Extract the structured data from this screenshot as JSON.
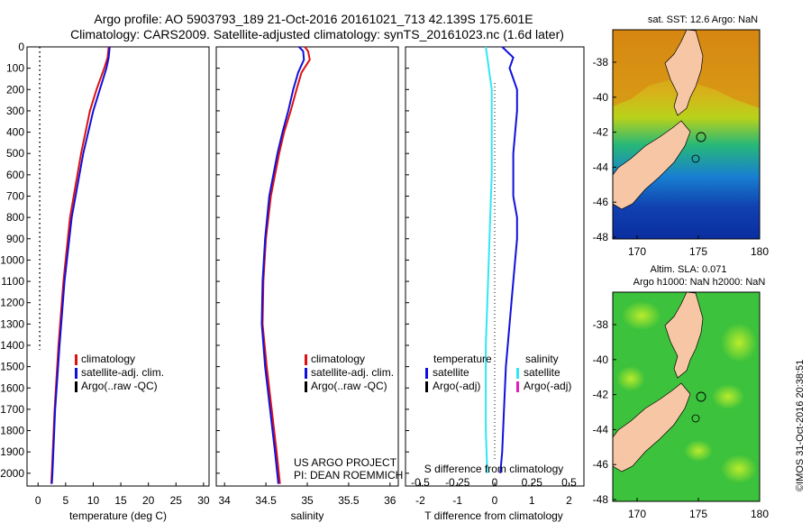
{
  "header": {
    "line1": "Argo profile: AO 5903793_189 21-Oct-2016 20161021_713 42.139S 175.601E",
    "line2": "Climatology: CARS2009. Satellite-adjusted climatology: synTS_20161023.nc (1.6d later)"
  },
  "colors": {
    "climatology": "#dd1111",
    "satellite": "#1010dd",
    "argo": "#000000",
    "satellite_s_diff": "#33e6f2",
    "argo_s_diff": "#e020c0",
    "land": "#f7c7a5"
  },
  "chart_data": [
    {
      "type": "line",
      "panel": "temperature",
      "xlabel": "temperature (deg C)",
      "xlim": [
        -2,
        31
      ],
      "xticks": [
        "0",
        "5",
        "10",
        "15",
        "20",
        "25",
        "30"
      ],
      "xtick_values": [
        0,
        5,
        10,
        15,
        20,
        25,
        30
      ],
      "ylim": [
        2060,
        0
      ],
      "yticks": [
        "0",
        "100",
        "200",
        "300",
        "400",
        "500",
        "600",
        "700",
        "800",
        "900",
        "1000",
        "1100",
        "1200",
        "1300",
        "1400",
        "1500",
        "1600",
        "1700",
        "1800",
        "1900",
        "2000"
      ],
      "ytick_values": [
        0,
        100,
        200,
        300,
        400,
        500,
        600,
        700,
        800,
        900,
        1000,
        1100,
        1200,
        1300,
        1400,
        1500,
        1600,
        1700,
        1800,
        1900,
        2000
      ],
      "legend": [
        "climatology",
        "satellite-adj. clim.",
        "Argo(..raw -QC)"
      ],
      "series": [
        {
          "name": "climatology",
          "depth": [
            0,
            50,
            100,
            200,
            300,
            500,
            800,
            1100,
            1400,
            1700,
            2000,
            2050
          ],
          "values": [
            12.8,
            12.6,
            12.0,
            10.6,
            9.4,
            7.8,
            5.8,
            4.6,
            3.7,
            3.0,
            2.5,
            2.4
          ]
        },
        {
          "name": "satellite-adj. clim.",
          "depth": [
            0,
            50,
            100,
            200,
            300,
            500,
            800,
            1100,
            1400,
            1700,
            2000,
            2050
          ],
          "values": [
            13.0,
            12.8,
            12.4,
            11.2,
            10.0,
            8.2,
            6.1,
            4.8,
            3.9,
            3.1,
            2.6,
            2.5
          ]
        },
        {
          "name": "Argo(..raw -QC)",
          "depth": [
            0,
            1420
          ],
          "values": [
            0.3,
            0.3
          ]
        }
      ]
    },
    {
      "type": "line",
      "panel": "salinity",
      "xlabel": "salinity",
      "xlim": [
        33.9,
        36.1
      ],
      "xticks": [
        "34",
        "34.5",
        "35",
        "35.5",
        "36"
      ],
      "xtick_values": [
        34,
        34.5,
        35,
        35.5,
        36
      ],
      "ylim": [
        2060,
        0
      ],
      "legend": [
        "climatology",
        "satellite-adj. clim.",
        "Argo(..raw -QC)"
      ],
      "annotation": [
        "US ARGO PROJECT",
        "PI: DEAN ROEMMICH"
      ],
      "series": [
        {
          "name": "climatology",
          "depth": [
            0,
            20,
            60,
            120,
            200,
            300,
            400,
            500,
            700,
            900,
            1100,
            1300,
            1500,
            1700,
            1900,
            2050
          ],
          "values": [
            34.97,
            35.01,
            35.03,
            34.93,
            34.87,
            34.8,
            34.72,
            34.66,
            34.56,
            34.5,
            34.47,
            34.46,
            34.51,
            34.57,
            34.63,
            34.67
          ]
        },
        {
          "name": "satellite-adj. clim.",
          "depth": [
            0,
            20,
            60,
            120,
            200,
            300,
            400,
            500,
            700,
            900,
            1100,
            1300,
            1500,
            1700,
            1900,
            2050
          ],
          "values": [
            34.9,
            34.95,
            34.96,
            34.89,
            34.83,
            34.77,
            34.7,
            34.64,
            34.54,
            34.49,
            34.46,
            34.45,
            34.49,
            34.55,
            34.61,
            34.65
          ]
        }
      ]
    },
    {
      "type": "line",
      "panel": "differences",
      "xlabel": "T difference from climatology",
      "xlabel2": "S difference from climatology",
      "xlim": [
        -2.4,
        2.4
      ],
      "xticks": [
        "-2",
        "-1",
        "0",
        "1",
        "2"
      ],
      "xtick_values": [
        -2,
        -1,
        0,
        1,
        2
      ],
      "xticks2": [
        "-0.5",
        "-0.25",
        "0",
        "0.25",
        "0.5"
      ],
      "xtick2_values": [
        -0.5,
        -0.25,
        0,
        0.25,
        0.5
      ],
      "ylim": [
        2060,
        0
      ],
      "legend_headers": [
        "temperature",
        "salinity"
      ],
      "legend_left": [
        "satellite",
        "Argo(-adj)"
      ],
      "legend_right": [
        "satellite",
        "Argo(-adj)"
      ],
      "series": [
        {
          "name": "T satellite - climatology",
          "depth": [
            0,
            50,
            100,
            200,
            300,
            500,
            700,
            800,
            900,
            1100,
            1300,
            1500,
            1700,
            1900,
            2000
          ],
          "values": [
            0.2,
            0.5,
            0.4,
            0.6,
            0.6,
            0.5,
            0.5,
            0.6,
            0.6,
            0.5,
            0.4,
            0.3,
            0.25,
            0.2,
            0.15
          ]
        },
        {
          "name": "S satellite - climatology",
          "depth": [
            0,
            50,
            100,
            200,
            400,
            600,
            800,
            1000,
            1200,
            1400,
            1600,
            1800,
            2000
          ],
          "values": [
            -0.06,
            -0.05,
            -0.04,
            -0.02,
            -0.02,
            -0.02,
            -0.03,
            -0.04,
            -0.05,
            -0.06,
            -0.06,
            -0.06,
            -0.05
          ]
        }
      ]
    }
  ],
  "maps": {
    "sst": {
      "title": "sat. SST: 12.6 Argo: NaN",
      "xticks": [
        "170",
        "175",
        "180"
      ],
      "yticks": [
        "-38",
        "-40",
        "-42",
        "-44",
        "-46",
        "-48"
      ]
    },
    "sla": {
      "title1": "Altim. SLA: 0.071",
      "title2": "Argo h1000: NaN h2000: NaN",
      "xticks": [
        "170",
        "175",
        "180"
      ],
      "yticks": [
        "-38",
        "-40",
        "-42",
        "-44",
        "-46",
        "-48"
      ]
    }
  },
  "watermark": "©IMOS 31-Oct-2016 20:38:51"
}
